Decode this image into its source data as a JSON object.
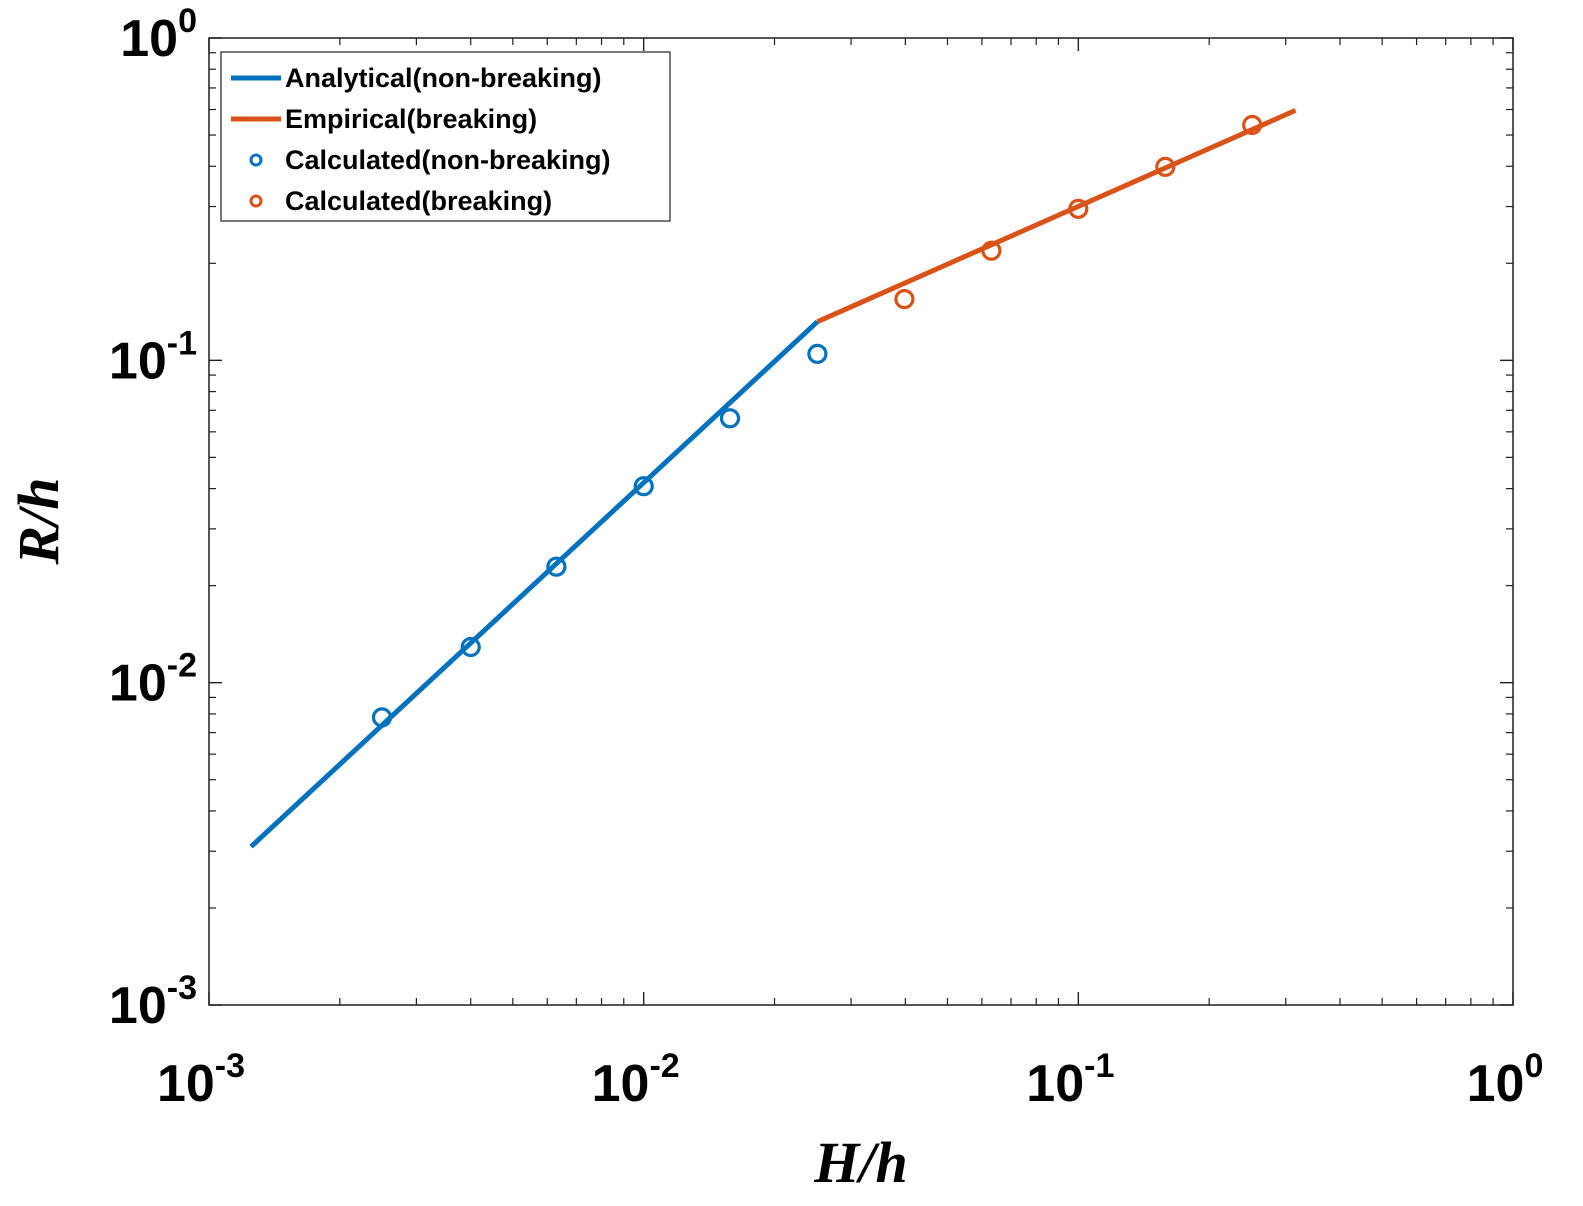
{
  "chart_data": {
    "type": "line",
    "scale": {
      "x": "log",
      "y": "log"
    },
    "xlabel": "H/h",
    "ylabel": "R/h",
    "xlim": [
      0.001,
      1
    ],
    "ylim": [
      0.001,
      1
    ],
    "grid": false,
    "legend_position": "top-left",
    "x_ticks": [
      {
        "value": 0.001,
        "base": "10",
        "exp": "-3"
      },
      {
        "value": 0.01,
        "base": "10",
        "exp": "-2"
      },
      {
        "value": 0.1,
        "base": "10",
        "exp": "-1"
      },
      {
        "value": 1,
        "base": "10",
        "exp": "0"
      }
    ],
    "y_ticks": [
      {
        "value": 0.001,
        "base": "10",
        "exp": "-3"
      },
      {
        "value": 0.01,
        "base": "10",
        "exp": "-2"
      },
      {
        "value": 0.1,
        "base": "10",
        "exp": "-1"
      },
      {
        "value": 1,
        "base": "10",
        "exp": "0"
      }
    ],
    "series": [
      {
        "name": "Analytical(non-breaking)",
        "kind": "line",
        "color": "#0072bd",
        "x": [
          0.00125,
          0.0251
        ],
        "y": [
          0.0031,
          0.1318
        ]
      },
      {
        "name": "Empirical(breaking)",
        "kind": "line",
        "color": "#d95319",
        "x": [
          0.0251,
          0.316
        ],
        "y": [
          0.1318,
          0.596
        ]
      },
      {
        "name": "Calculated(non-breaking)",
        "kind": "scatter",
        "color": "#0072bd",
        "x": [
          0.0025,
          0.004,
          0.0063,
          0.01,
          0.0158,
          0.0251
        ],
        "y": [
          0.0078,
          0.0129,
          0.0229,
          0.0407,
          0.0661,
          0.1047
        ]
      },
      {
        "name": "Calculated(breaking)",
        "kind": "scatter",
        "color": "#d95319",
        "x": [
          0.0398,
          0.0631,
          0.1,
          0.1585,
          0.2512
        ],
        "y": [
          0.1549,
          0.2188,
          0.2951,
          0.3981,
          0.537
        ]
      }
    ]
  }
}
